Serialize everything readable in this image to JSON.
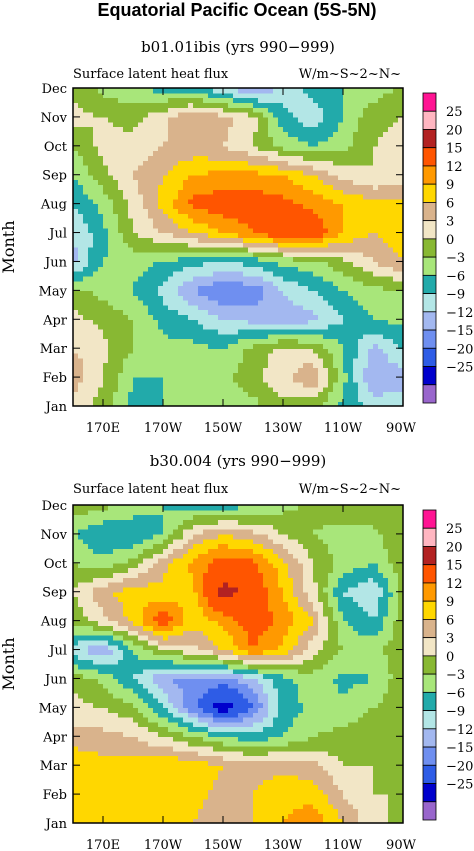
{
  "figure_title": "Equatorial Pacific Ocean (5S-5N)",
  "color_scale": {
    "levels": [
      "25",
      "20",
      "15",
      "12",
      "9",
      "6",
      "3",
      "0",
      "−3",
      "−6",
      "−9",
      "−12",
      "−15",
      "−20",
      "−25"
    ],
    "colors": [
      "#9966cc",
      "#0000cc",
      "#2e5ce6",
      "#6f8ff0",
      "#a3b8f0",
      "#b3e6e6",
      "#22aaaa",
      "#a8e67a",
      "#88b833",
      "#f2e6c6",
      "#d9b38c",
      "#ffd700",
      "#ff9900",
      "#ff5500",
      "#b22222",
      "#ffb6c1",
      "#ff1493"
    ],
    "bounds": [
      -25,
      -20,
      -15,
      -12,
      -9,
      -6,
      -3,
      0,
      3,
      6,
      9,
      12,
      15,
      20,
      25
    ]
  },
  "chart_data": [
    {
      "type": "heatmap",
      "title": "b01.01ibis (yrs 990−999)",
      "subtitle_left": "Surface latent heat flux",
      "subtitle_right": "W/m~S~2~N~",
      "ylabel": "Month",
      "x_ticks": [
        "170E",
        "170W",
        "150W",
        "130W",
        "110W",
        "90W"
      ],
      "y_ticks": [
        "Jan",
        "Feb",
        "Mar",
        "Apr",
        "May",
        "Jun",
        "Jul",
        "Aug",
        "Sep",
        "Oct",
        "Nov",
        "Dec"
      ],
      "x": [
        "160E",
        "170E",
        "180",
        "170W",
        "160W",
        "150W",
        "140W",
        "130W",
        "120W",
        "110W",
        "100W",
        "90W"
      ],
      "y": [
        "Jan",
        "Feb",
        "Mar",
        "Apr",
        "May",
        "Jun",
        "Jul",
        "Aug",
        "Sep",
        "Oct",
        "Nov",
        "Dec"
      ],
      "z": [
        [
          4,
          2,
          -4,
          -3,
          -3,
          -2,
          -1,
          2,
          1,
          -4,
          -7,
          -8
        ],
        [
          8,
          3,
          -3,
          -3,
          -2,
          -1,
          2,
          5,
          9,
          -2,
          -12,
          -10
        ],
        [
          6,
          4,
          0,
          -2,
          -2,
          -3,
          1,
          4,
          3,
          -3,
          -10,
          -6
        ],
        [
          4,
          2,
          0,
          -4,
          -6,
          -9,
          -10,
          -11,
          -10,
          -6,
          -3,
          -2
        ],
        [
          1,
          -1,
          -3,
          -7,
          -12,
          -15,
          -14,
          -9,
          -6,
          -3,
          -1,
          0
        ],
        [
          -10,
          -3,
          -2,
          -3,
          -5,
          -6,
          -5,
          -2,
          -1,
          2,
          6,
          9
        ],
        [
          -9,
          -4,
          3,
          6,
          9,
          12,
          15,
          18,
          18,
          12,
          9,
          11
        ],
        [
          -6,
          -2,
          4,
          10,
          16,
          17,
          17,
          16,
          14,
          12,
          10,
          10
        ],
        [
          -3,
          2,
          6,
          9,
          12,
          13,
          13,
          12,
          9,
          5,
          3,
          4
        ],
        [
          0,
          4,
          4,
          6,
          7,
          6,
          3,
          -1,
          -3,
          -1,
          3,
          4
        ],
        [
          4,
          3,
          2,
          5,
          9,
          7,
          4,
          -5,
          -8,
          -3,
          2,
          3
        ],
        [
          2,
          -1,
          -3,
          -4,
          -5,
          -8,
          -13,
          -8,
          -5,
          -3,
          -2,
          1
        ]
      ]
    },
    {
      "type": "heatmap",
      "title": "b30.004 (yrs 990−999)",
      "subtitle_left": "Surface latent heat flux",
      "subtitle_right": "W/m~S~2~N~",
      "ylabel": "Month",
      "x_ticks": [
        "170E",
        "170W",
        "150W",
        "130W",
        "110W",
        "90W"
      ],
      "y_ticks": [
        "Jan",
        "Feb",
        "Mar",
        "Apr",
        "May",
        "Jun",
        "Jul",
        "Aug",
        "Sep",
        "Oct",
        "Nov",
        "Dec"
      ],
      "x": [
        "160E",
        "170E",
        "180",
        "170W",
        "160W",
        "150W",
        "140W",
        "130W",
        "120W",
        "110W",
        "100W",
        "90W"
      ],
      "y": [
        "Jan",
        "Feb",
        "Mar",
        "Apr",
        "May",
        "Jun",
        "Jul",
        "Aug",
        "Sep",
        "Oct",
        "Nov",
        "Dec"
      ],
      "z": [
        [
          11,
          9,
          9,
          10,
          9,
          7,
          9,
          12,
          14,
          9,
          4,
          2
        ],
        [
          9,
          9,
          10,
          11,
          10,
          8,
          9,
          11,
          11,
          6,
          3,
          3
        ],
        [
          12,
          10,
          10,
          12,
          11,
          9,
          8,
          8,
          7,
          3,
          3,
          2
        ],
        [
          7,
          7,
          6,
          3,
          0,
          -3,
          -5,
          -3,
          0,
          1,
          2,
          2
        ],
        [
          4,
          3,
          1,
          -6,
          -14,
          -23,
          -15,
          -5,
          -2,
          -2,
          0,
          2
        ],
        [
          2,
          -1,
          -6,
          -12,
          -13,
          -13,
          -10,
          -4,
          -1,
          -4,
          -3,
          2
        ],
        [
          -8,
          -12,
          -3,
          3,
          5,
          9,
          15,
          11,
          4,
          0,
          -1,
          2
        ],
        [
          1,
          5,
          10,
          18,
          10,
          13,
          17,
          14,
          9,
          -3,
          -6,
          2
        ],
        [
          3,
          8,
          11,
          10,
          11,
          22,
          18,
          12,
          4,
          -6,
          -9,
          1
        ],
        [
          0,
          -2,
          1,
          8,
          13,
          17,
          16,
          10,
          3,
          -1,
          -3,
          2
        ],
        [
          -3,
          -6,
          -6,
          -3,
          6,
          9,
          7,
          3,
          0,
          -2,
          -1,
          3
        ],
        [
          2,
          1,
          -1,
          -3,
          -4,
          -5,
          -3,
          -1,
          1,
          3,
          3,
          3
        ]
      ]
    }
  ]
}
